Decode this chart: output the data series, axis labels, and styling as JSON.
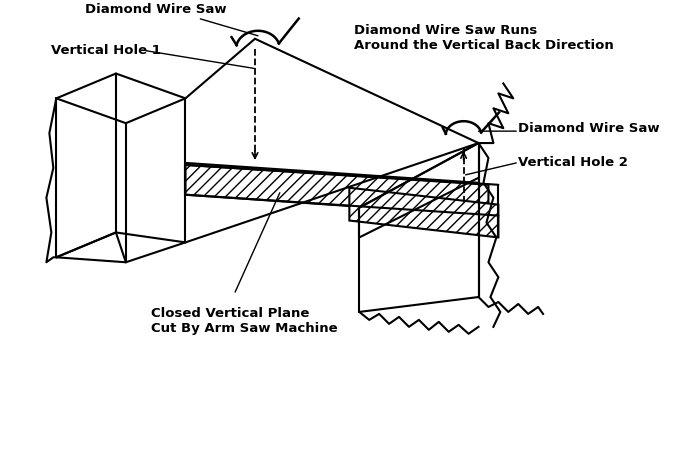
{
  "bg_color": "#ffffff",
  "line_color": "#000000",
  "lw": 1.5,
  "labels": {
    "diamond_wire_saw_1": "Diamond Wire Saw",
    "vertical_hole_1": "Vertical Hole 1",
    "diamond_wire_saw_runs": "Diamond Wire Saw Runs\nAround the Vertical Back Direction",
    "diamond_wire_saw_2": "Diamond Wire Saw",
    "vertical_hole_2": "Vertical Hole 2",
    "closed_vertical_plane": "Closed Vertical Plane\nCut By Arm Saw Machine"
  }
}
